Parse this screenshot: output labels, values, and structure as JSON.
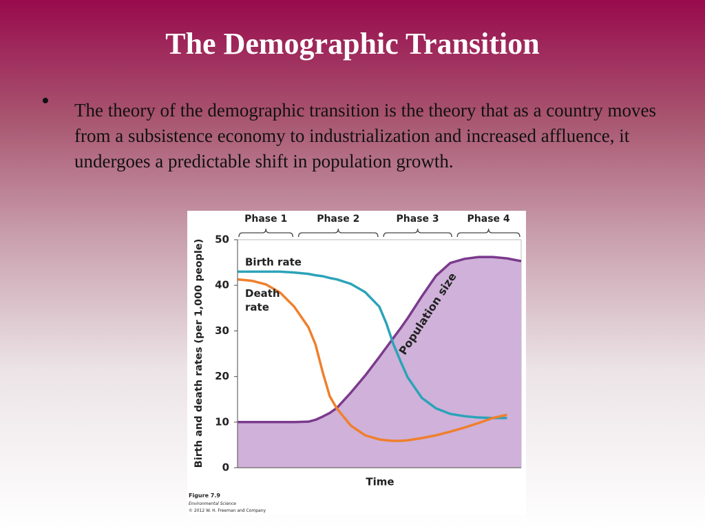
{
  "slide": {
    "title": "The Demographic Transition",
    "bullet": "The theory of the demographic transition is the theory that as a country moves from a subsistence economy to industrialization and increased affluence, it undergoes a predictable shift in population growth."
  },
  "chart_data": {
    "type": "line",
    "x_label": "Time",
    "y_label": "Birth and death rates (per 1,000 people)",
    "phases": [
      {
        "label": "Phase 1",
        "start": 0,
        "end": 20
      },
      {
        "label": "Phase 2",
        "start": 21,
        "end": 50
      },
      {
        "label": "Phase 3",
        "start": 51,
        "end": 76
      },
      {
        "label": "Phase 4",
        "start": 77,
        "end": 100
      }
    ],
    "x": [
      0,
      5,
      10,
      15,
      20,
      25,
      27.5,
      30,
      32.5,
      35,
      40,
      45,
      50,
      52.5,
      55,
      57.5,
      60,
      65,
      70,
      75,
      80,
      85,
      90,
      95,
      100
    ],
    "xlim": [
      0,
      100
    ],
    "ylim": [
      0,
      50
    ],
    "yticks": [
      0,
      10,
      20,
      30,
      40,
      50
    ],
    "series": [
      {
        "name": "Population size",
        "color": "#7b3a8c",
        "fill": "#cfb1d9",
        "values": [
          10,
          10,
          10,
          10,
          10,
          10.1,
          10.5,
          11.2,
          12,
          13.1,
          16.5,
          20.2,
          24.3,
          26.4,
          28.5,
          30.6,
          32.8,
          37.6,
          42.1,
          44.9,
          45.8,
          46.2,
          46.2,
          45.9,
          45.3
        ]
      },
      {
        "name": "Birth rate",
        "color": "#2ba3b8",
        "values": [
          43,
          43,
          43,
          43,
          42.8,
          42.5,
          42.2,
          42,
          41.6,
          41.3,
          40.3,
          38.5,
          35.3,
          31.6,
          27,
          23.3,
          19.8,
          15.3,
          13,
          11.8,
          11.3,
          11,
          10.9,
          10.9,
          null
        ]
      },
      {
        "name": "Death rate",
        "color": "#f07f2b",
        "values": [
          41.3,
          41,
          40.2,
          38.4,
          35.3,
          30.8,
          27,
          21,
          15.7,
          13,
          9.2,
          7.1,
          6.2,
          6,
          5.9,
          5.9,
          6,
          6.5,
          7.1,
          7.9,
          8.8,
          9.8,
          10.9,
          11.6,
          null
        ]
      }
    ],
    "footer": {
      "figure": "Figure 7.9",
      "book": "Environmental Science",
      "copyright": "© 2012 W. H. Freeman and Company"
    }
  }
}
